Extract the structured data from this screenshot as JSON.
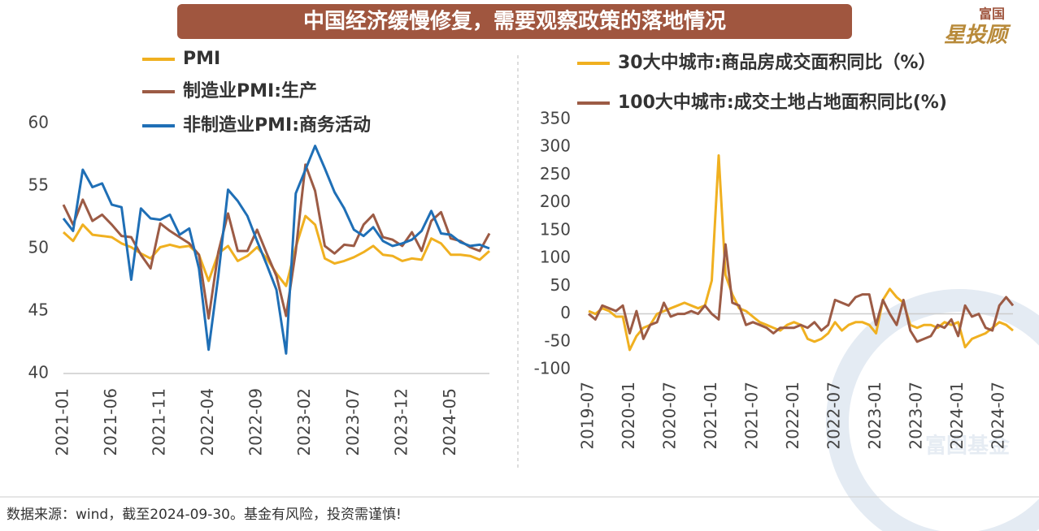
{
  "title": "中国经济缓慢修复，需要观察政策的落地情况",
  "brand": [
    "富国",
    "星投顾"
  ],
  "watermark": "富国基金",
  "source": "数据来源：wind，截至2024-09-30。基金有风险，投资需谨慎!",
  "chart_data": [
    {
      "type": "line",
      "categories": [
        "2021-01",
        null,
        null,
        null,
        null,
        "2021-06",
        null,
        null,
        null,
        null,
        "2021-11",
        null,
        null,
        null,
        null,
        "2022-04",
        null,
        null,
        null,
        null,
        "2022-09",
        null,
        null,
        null,
        null,
        "2023-02",
        null,
        null,
        null,
        null,
        "2023-07",
        null,
        null,
        null,
        null,
        "2023-12",
        null,
        null,
        null,
        null,
        "2024-05",
        null,
        null,
        null,
        null
      ],
      "ylim": [
        40,
        60
      ],
      "yticks": [
        40,
        45,
        50,
        55,
        60
      ],
      "series": [
        {
          "name": "PMI",
          "color": "#f0b020",
          "values": [
            51.3,
            50.6,
            51.9,
            51.1,
            51.0,
            50.9,
            50.4,
            50.1,
            49.6,
            49.2,
            50.1,
            50.3,
            50.1,
            50.2,
            49.5,
            47.4,
            49.6,
            50.2,
            49.0,
            49.4,
            50.1,
            49.2,
            48.0,
            47.0,
            50.1,
            52.6,
            51.9,
            49.2,
            48.8,
            49.0,
            49.3,
            49.7,
            50.2,
            49.5,
            49.4,
            49.0,
            49.2,
            49.1,
            50.8,
            50.4,
            49.5,
            49.5,
            49.4,
            49.1,
            49.8
          ]
        },
        {
          "name": "制造业PMI:生产",
          "color": "#9c5b45",
          "values": [
            53.5,
            51.9,
            53.9,
            52.2,
            52.7,
            51.9,
            51.0,
            50.9,
            49.5,
            48.4,
            52.0,
            51.4,
            50.9,
            50.4,
            49.5,
            44.4,
            49.7,
            52.8,
            49.8,
            49.8,
            51.5,
            49.6,
            47.8,
            44.6,
            49.8,
            56.7,
            54.6,
            50.2,
            49.6,
            50.3,
            50.2,
            51.9,
            52.7,
            50.9,
            50.7,
            50.2,
            51.3,
            49.8,
            52.2,
            52.9,
            50.8,
            50.6,
            50.1,
            49.8,
            51.2
          ]
        },
        {
          "name": "非制造业PMI:商务活动",
          "color": "#1f6fb6",
          "values": [
            52.4,
            51.4,
            56.3,
            54.9,
            55.2,
            53.5,
            53.3,
            47.5,
            53.2,
            52.4,
            52.3,
            52.7,
            51.1,
            51.6,
            48.4,
            41.9,
            47.8,
            54.7,
            53.8,
            52.6,
            50.6,
            48.7,
            46.7,
            41.6,
            54.4,
            56.3,
            58.2,
            56.4,
            54.5,
            53.2,
            51.5,
            51.0,
            51.7,
            50.6,
            50.2,
            50.4,
            50.7,
            51.4,
            53.0,
            51.2,
            51.1,
            50.5,
            50.2,
            50.3,
            50.0
          ]
        }
      ]
    },
    {
      "type": "line",
      "categories": [
        "2019-07",
        null,
        null,
        null,
        null,
        null,
        "2020-01",
        null,
        null,
        null,
        null,
        null,
        "2020-07",
        null,
        null,
        null,
        null,
        null,
        "2021-01",
        null,
        null,
        null,
        null,
        null,
        "2021-07",
        null,
        null,
        null,
        null,
        null,
        "2022-01",
        null,
        null,
        null,
        null,
        null,
        "2022-07",
        null,
        null,
        null,
        null,
        null,
        "2023-01",
        null,
        null,
        null,
        null,
        null,
        "2023-07",
        null,
        null,
        null,
        null,
        null,
        "2024-01",
        null,
        null,
        null,
        null,
        null,
        "2024-07",
        null,
        null
      ],
      "ylim": [
        -100,
        350
      ],
      "yticks": [
        -100,
        -50,
        0,
        50,
        100,
        150,
        200,
        250,
        300,
        350
      ],
      "series": [
        {
          "name": "30大中城市:商品房成交面积同比（%）",
          "color": "#f0b020",
          "values": [
            5,
            0,
            10,
            5,
            -5,
            -5,
            -65,
            -40,
            -25,
            -20,
            0,
            5,
            10,
            15,
            20,
            15,
            10,
            15,
            60,
            285,
            70,
            35,
            10,
            5,
            -5,
            -15,
            -20,
            -25,
            -30,
            -20,
            -15,
            -20,
            -45,
            -50,
            -45,
            -35,
            -15,
            -30,
            -20,
            -15,
            -15,
            -20,
            -35,
            25,
            45,
            30,
            20,
            -20,
            -25,
            -20,
            -20,
            -25,
            -15,
            -20,
            -15,
            -60,
            -45,
            -40,
            -35,
            -25,
            -15,
            -20,
            -30
          ]
        },
        {
          "name": "100大中城市:成交土地占地面积同比(%)",
          "color": "#9c5b45",
          "values": [
            0,
            -10,
            15,
            10,
            5,
            15,
            -35,
            5,
            -45,
            -20,
            -15,
            20,
            -5,
            0,
            0,
            5,
            0,
            15,
            0,
            -10,
            125,
            20,
            15,
            -20,
            -15,
            -20,
            -25,
            -35,
            -25,
            -25,
            -25,
            -20,
            -25,
            -15,
            -30,
            -20,
            25,
            20,
            15,
            30,
            35,
            35,
            -20,
            25,
            0,
            -20,
            25,
            -30,
            -50,
            -45,
            -40,
            -20,
            -25,
            -10,
            -40,
            15,
            -5,
            0,
            -25,
            -30,
            15,
            30,
            15
          ]
        }
      ]
    }
  ]
}
